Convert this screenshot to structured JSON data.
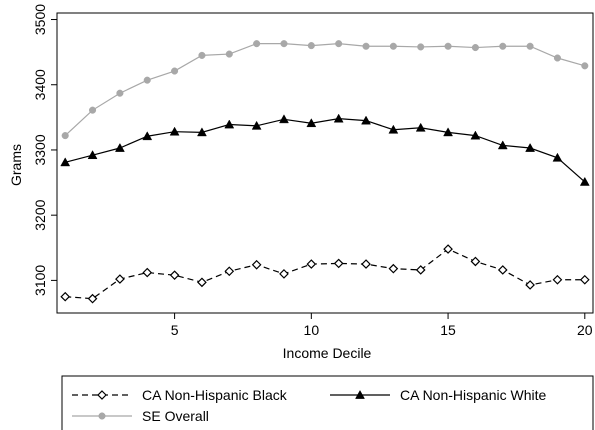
{
  "chart_data": {
    "type": "line",
    "xlabel": "Income Decile",
    "ylabel": "Grams",
    "x": [
      1,
      2,
      3,
      4,
      5,
      6,
      7,
      8,
      9,
      10,
      11,
      12,
      13,
      14,
      15,
      16,
      17,
      18,
      19,
      20
    ],
    "xlim": [
      0.7,
      20.3
    ],
    "ylim": [
      3050,
      3510
    ],
    "xticks": [
      5,
      10,
      15,
      20
    ],
    "yticks": [
      3100,
      3200,
      3300,
      3400,
      3500
    ],
    "grid": false,
    "legend_position": "bottom",
    "series": [
      {
        "name": "CA Non-Hispanic Black",
        "color": "#000000",
        "line_style": "dashed",
        "marker": "hollow-diamond",
        "values": [
          3075,
          3072,
          3102,
          3112,
          3108,
          3097,
          3114,
          3124,
          3110,
          3125,
          3126,
          3125,
          3118,
          3116,
          3148,
          3129,
          3116,
          3093,
          3101,
          3101
        ]
      },
      {
        "name": "CA Non-Hispanic White",
        "color": "#000000",
        "line_style": "solid",
        "marker": "filled-triangle",
        "values": [
          3281,
          3292,
          3303,
          3321,
          3328,
          3327,
          3339,
          3337,
          3347,
          3341,
          3348,
          3345,
          3331,
          3334,
          3327,
          3322,
          3307,
          3303,
          3288,
          3251
        ]
      },
      {
        "name": "SE Overall",
        "color": "#a8a8a8",
        "line_style": "solid",
        "marker": "filled-circle",
        "values": [
          3322,
          3361,
          3387,
          3407,
          3421,
          3445,
          3447,
          3463,
          3463,
          3460,
          3463,
          3459,
          3459,
          3458,
          3459,
          3457,
          3459,
          3459,
          3441,
          3429
        ]
      }
    ]
  }
}
